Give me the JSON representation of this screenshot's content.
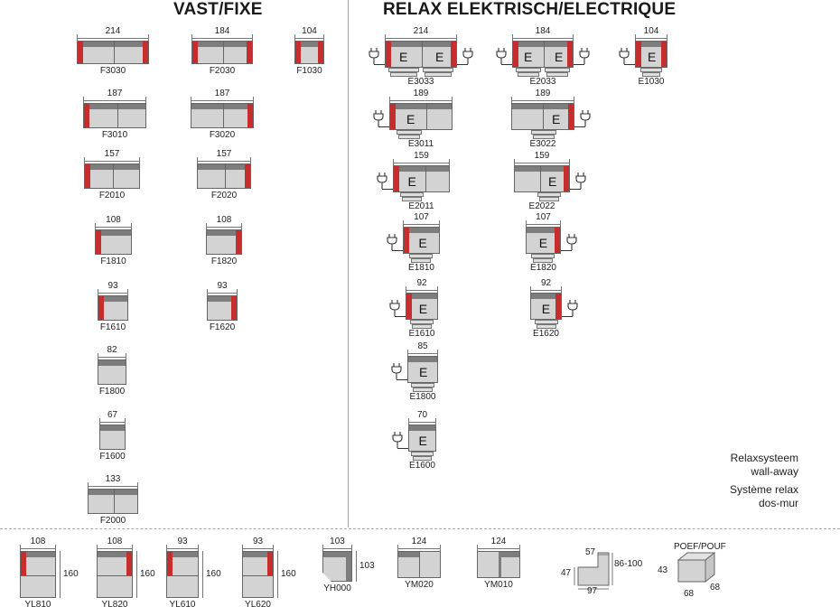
{
  "titles": {
    "fixed": "VAST/FIXE",
    "relax": "RELAX ELEKTRISCH/ELECTRIQUE"
  },
  "fixed_models": [
    {
      "code": "F3030",
      "width": "214"
    },
    {
      "code": "F2030",
      "width": "184"
    },
    {
      "code": "F1030",
      "width": "104"
    },
    {
      "code": "F3010",
      "width": "187"
    },
    {
      "code": "F3020",
      "width": "187"
    },
    {
      "code": "F2010",
      "width": "157"
    },
    {
      "code": "F2020",
      "width": "157"
    },
    {
      "code": "F1810",
      "width": "108"
    },
    {
      "code": "F1820",
      "width": "108"
    },
    {
      "code": "F1610",
      "width": "93"
    },
    {
      "code": "F1620",
      "width": "93"
    },
    {
      "code": "F1800",
      "width": "82"
    },
    {
      "code": "F1600",
      "width": "67"
    },
    {
      "code": "F2000",
      "width": "133"
    }
  ],
  "relax_models": [
    {
      "code": "E3033",
      "width": "214"
    },
    {
      "code": "E2033",
      "width": "184"
    },
    {
      "code": "E1030",
      "width": "104"
    },
    {
      "code": "E3011",
      "width": "189"
    },
    {
      "code": "E3022",
      "width": "189"
    },
    {
      "code": "E2011",
      "width": "159"
    },
    {
      "code": "E2022",
      "width": "159"
    },
    {
      "code": "E1810",
      "width": "107"
    },
    {
      "code": "E1820",
      "width": "107"
    },
    {
      "code": "E1610",
      "width": "92"
    },
    {
      "code": "E1620",
      "width": "92"
    },
    {
      "code": "E1800",
      "width": "85"
    },
    {
      "code": "E1600",
      "width": "70"
    }
  ],
  "relax_seat_letter": "E",
  "note": {
    "nl_1": "Relaxsysteem",
    "nl_2": "wall-away",
    "fr_1": "Système relax",
    "fr_2": "dos-mur"
  },
  "bottom_models": [
    {
      "code": "YL810",
      "width": "108",
      "depth": "160"
    },
    {
      "code": "YL820",
      "width": "108",
      "depth": "160"
    },
    {
      "code": "YL610",
      "width": "93",
      "depth": "160"
    },
    {
      "code": "YL620",
      "width": "93",
      "depth": "160"
    },
    {
      "code": "YH000",
      "width": "103",
      "depth": "103"
    },
    {
      "code": "YM020",
      "width": "124"
    },
    {
      "code": "YM010",
      "width": "124"
    }
  ],
  "side_profile": {
    "top": "57",
    "seat": "47",
    "height": "86-100",
    "depth": "97"
  },
  "pouf": {
    "label": "POEF/POUF",
    "height": "43",
    "width": "68",
    "depth": "68"
  },
  "colors": {
    "arm": "#c62d2d",
    "back": "#7d7d7d",
    "seat": "#d3d3d3"
  }
}
